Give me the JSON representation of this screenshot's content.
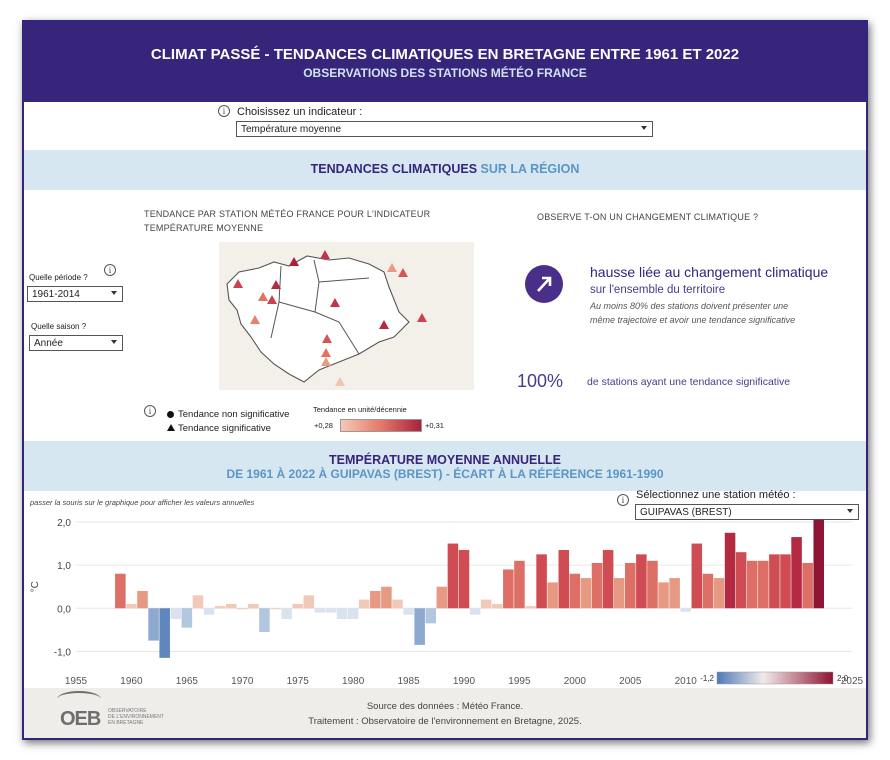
{
  "header": {
    "title": "CLIMAT PASSÉ - TENDANCES CLIMATIQUES EN BRETAGNE ENTRE 1961 ET 2022",
    "subtitle": "OBSERVATIONS DES STATIONS MÉTÉO FRANCE"
  },
  "indicator": {
    "label": "Choisissez un indicateur :",
    "value": "Température moyenne"
  },
  "section1": {
    "title_part1": "TENDANCES CLIMATIQUES",
    "title_part2": "SUR LA RÉGION"
  },
  "map": {
    "title_line1": "TENDANCE PAR STATION MÉTÉO FRANCE POUR L'INDICATEUR",
    "title_line2": "TEMPÉRATURE MOYENNE",
    "legend_nonsig": "Tendance non significative",
    "legend_sig": "Tendance significative",
    "scale_title": "Tendance en unité/décennie",
    "scale_min": "+0,28",
    "scale_max": "+0,31"
  },
  "period": {
    "label": "Quelle période ?",
    "value": "1961-2014"
  },
  "season": {
    "label": "Quelle saison ?",
    "value": "Année"
  },
  "change": {
    "question": "OBSERVE T-ON UN CHANGEMENT CLIMATIQUE ?",
    "headline": "hausse liée au changement climatique",
    "sub": "sur l'ensemble du territoire",
    "note1": "Au moins 80% des stations doivent présenter une",
    "note2": "même trajectoire et  avoir une tendance significative",
    "pct": "100%",
    "pct_label": "de stations ayant une tendance significative"
  },
  "section2": {
    "title": "TEMPÉRATURE MOYENNE ANNUELLE",
    "subtitle": "DE 1961 À 2022 À GUIPAVAS (BREST) - ÉCART À LA RÉFÉRENCE 1961-1990"
  },
  "hover_hint": "passer la souris sur le graphique pour afficher les valeurs annuelles",
  "station": {
    "label": "Sélectionnez une station météo :",
    "value": "GUIPAVAS (BREST)"
  },
  "chart_data": {
    "type": "bar",
    "ylabel": "°C",
    "xlim": [
      1955,
      2025
    ],
    "ylim": [
      -1.2,
      2.0
    ],
    "x_ticks": [
      "1955",
      "1960",
      "1965",
      "1970",
      "1975",
      "1980",
      "1985",
      "1990",
      "1995",
      "2000",
      "2005",
      "2010",
      "2015",
      "2020",
      "2025"
    ],
    "y_ticks": [
      "2,0",
      "1,0",
      "0,0",
      "-1,0"
    ],
    "x": [
      1959,
      1960,
      1961,
      1962,
      1963,
      1964,
      1965,
      1966,
      1967,
      1968,
      1969,
      1970,
      1971,
      1972,
      1973,
      1974,
      1975,
      1976,
      1977,
      1978,
      1979,
      1980,
      1981,
      1982,
      1983,
      1984,
      1985,
      1986,
      1987,
      1988,
      1989,
      1990,
      1991,
      1992,
      1993,
      1994,
      1995,
      1996,
      1997,
      1998,
      1999,
      2000,
      2001,
      2002,
      2003,
      2004,
      2005,
      2006,
      2007,
      2008,
      2009,
      2010,
      2011,
      2012,
      2013,
      2014,
      2015,
      2016,
      2017,
      2018,
      2019,
      2020,
      2021,
      2022
    ],
    "values": [
      0.8,
      0.1,
      0.4,
      -0.75,
      -1.15,
      -0.25,
      -0.45,
      0.3,
      -0.15,
      0.05,
      0.1,
      0.0,
      0.1,
      -0.55,
      0.0,
      -0.25,
      0.1,
      0.3,
      -0.1,
      -0.1,
      -0.25,
      -0.25,
      0.2,
      0.4,
      0.5,
      0.2,
      -0.15,
      -0.85,
      -0.35,
      0.5,
      1.5,
      1.35,
      -0.15,
      0.2,
      0.1,
      0.9,
      1.1,
      0.05,
      1.25,
      0.6,
      1.35,
      0.8,
      0.7,
      1.05,
      1.35,
      0.7,
      1.05,
      1.25,
      1.1,
      0.6,
      0.7,
      -0.08,
      1.5,
      0.8,
      0.7,
      1.75,
      1.3,
      1.1,
      1.1,
      1.25,
      1.25,
      1.65,
      1.05,
      2.05
    ],
    "color_scale_min": "-1,2",
    "color_scale_max": "2,0"
  },
  "footer": {
    "source": "Source des données : Météo France.",
    "treatment": "Traitement : Observatoire de l'environnement en Bretagne, 2025.",
    "logo": "OEB",
    "logo_sub1": "OBSERVATOIRE",
    "logo_sub2": "DE L'ENVIRONNEMENT",
    "logo_sub3": "EN BRETAGNE"
  },
  "colors": {
    "header": "#37247b",
    "band": "#d6e7f1",
    "accent_blue": "#5b95c6",
    "warm": "#b3203b",
    "cool": "#4d79b8"
  }
}
